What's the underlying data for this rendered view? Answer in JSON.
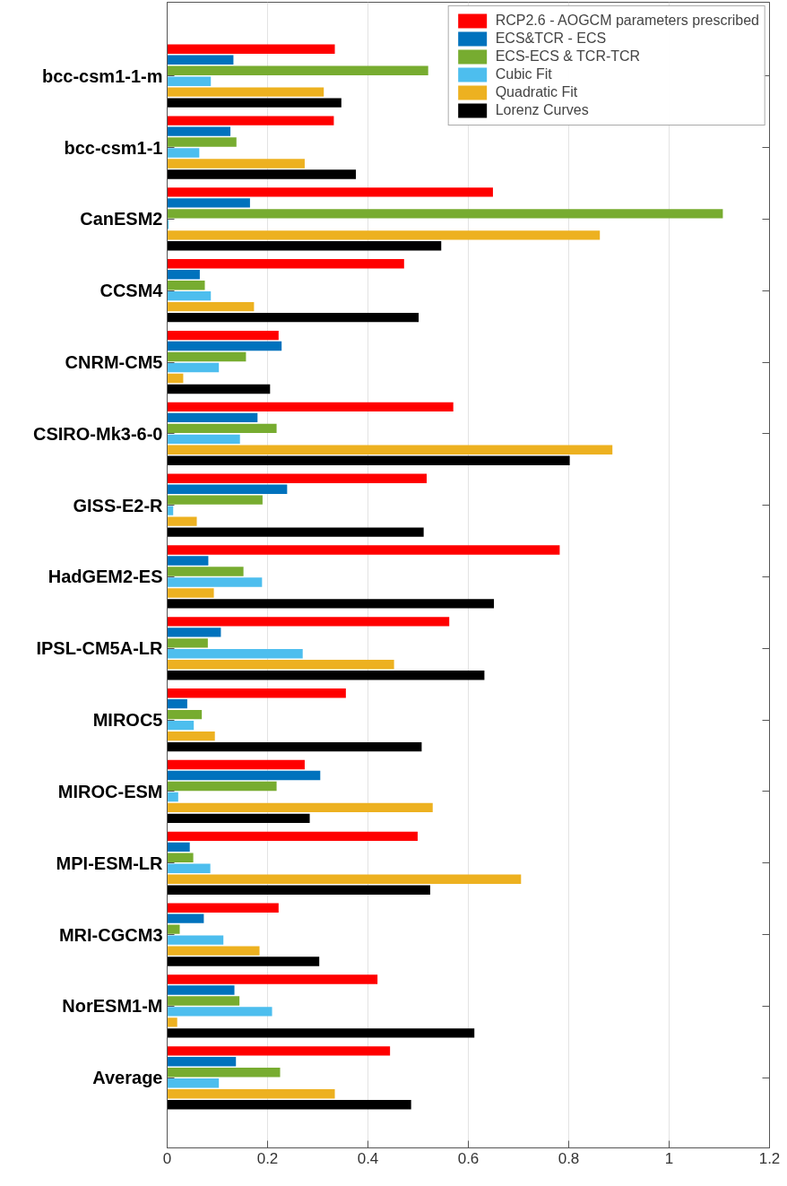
{
  "chart_data": {
    "type": "bar",
    "orientation": "horizontal",
    "categories": [
      "bcc-csm1-1-m",
      "bcc-csm1-1",
      "CanESM2",
      "CCSM4",
      "CNRM-CM5",
      "CSIRO-Mk3-6-0",
      "GISS-E2-R",
      "HadGEM2-ES",
      "IPSL-CM5A-LR",
      "MIROC5",
      "MIROC-ESM",
      "MPI-ESM-LR",
      "MRI-CGCM3",
      "NorESM1-M",
      "Average"
    ],
    "series": [
      {
        "name": "RCP2.6 - AOGCM parameters prescribed",
        "color": "#ff0000",
        "values": [
          0.334,
          0.332,
          0.649,
          0.472,
          0.222,
          0.57,
          0.517,
          0.782,
          0.562,
          0.356,
          0.274,
          0.499,
          0.222,
          0.419,
          0.444
        ]
      },
      {
        "name": "ECS&TCR - ECS",
        "color": "#0072bd",
        "values": [
          0.132,
          0.126,
          0.165,
          0.065,
          0.228,
          0.18,
          0.239,
          0.082,
          0.107,
          0.04,
          0.305,
          0.045,
          0.073,
          0.134,
          0.137
        ]
      },
      {
        "name": "ECS-ECS & TCR-TCR",
        "color": "#77ac30",
        "values": [
          0.52,
          0.138,
          1.107,
          0.075,
          0.157,
          0.218,
          0.19,
          0.152,
          0.081,
          0.069,
          0.218,
          0.052,
          0.025,
          0.144,
          0.225
        ]
      },
      {
        "name": "Cubic Fit",
        "color": "#4dbeee",
        "values": [
          0.087,
          0.064,
          0.003,
          0.087,
          0.103,
          0.145,
          0.012,
          0.189,
          0.27,
          0.053,
          0.022,
          0.086,
          0.112,
          0.209,
          0.103
        ]
      },
      {
        "name": "Quadratic Fit",
        "color": "#edb120",
        "values": [
          0.312,
          0.274,
          0.862,
          0.173,
          0.032,
          0.887,
          0.059,
          0.093,
          0.452,
          0.095,
          0.529,
          0.705,
          0.184,
          0.02,
          0.334
        ]
      },
      {
        "name": "Lorenz Curves",
        "color": "#000000",
        "values": [
          0.347,
          0.376,
          0.546,
          0.501,
          0.205,
          0.802,
          0.511,
          0.651,
          0.632,
          0.507,
          0.284,
          0.524,
          0.303,
          0.612,
          0.486
        ]
      }
    ],
    "xlim": [
      0,
      1.2
    ],
    "xticks": [
      0,
      0.2,
      0.4,
      0.6,
      0.8,
      1,
      1.2
    ],
    "grid": "x",
    "legend": "top right"
  }
}
